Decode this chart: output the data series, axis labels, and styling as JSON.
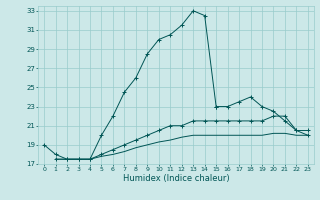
{
  "title": "",
  "xlabel": "Humidex (Indice chaleur)",
  "bg_color": "#cce8e8",
  "grid_color": "#99cccc",
  "line_color": "#005555",
  "xlim": [
    -0.5,
    23.5
  ],
  "ylim": [
    17,
    33.5
  ],
  "yticks": [
    17,
    19,
    21,
    23,
    25,
    27,
    29,
    31,
    33
  ],
  "xticks": [
    0,
    1,
    2,
    3,
    4,
    5,
    6,
    7,
    8,
    9,
    10,
    11,
    12,
    13,
    14,
    15,
    16,
    17,
    18,
    19,
    20,
    21,
    22,
    23
  ],
  "series": [
    {
      "x": [
        0,
        1,
        2,
        3,
        4,
        5,
        6,
        7,
        8,
        9,
        10,
        11,
        12,
        13,
        14,
        15
      ],
      "y": [
        19.0,
        18.0,
        17.5,
        17.5,
        17.5,
        20.0,
        22.0,
        24.5,
        26.0,
        28.5,
        30.0,
        30.5,
        31.5,
        33.0,
        32.5,
        23.0
      ],
      "marker": "+"
    },
    {
      "x": [
        15,
        16,
        17,
        18,
        19,
        20,
        21,
        22,
        23
      ],
      "y": [
        23.0,
        23.0,
        23.5,
        24.0,
        23.0,
        22.5,
        21.5,
        20.5,
        20.0
      ],
      "marker": "+"
    },
    {
      "x": [
        1,
        2,
        3,
        4,
        5,
        6,
        7,
        8,
        9,
        10,
        11,
        12,
        13,
        14,
        15,
        16,
        17,
        18,
        19,
        20,
        21,
        22,
        23
      ],
      "y": [
        17.5,
        17.5,
        17.5,
        17.5,
        18.0,
        18.5,
        19.0,
        19.5,
        20.0,
        20.5,
        21.0,
        21.0,
        21.5,
        21.5,
        21.5,
        21.5,
        21.5,
        21.5,
        21.5,
        22.0,
        22.0,
        20.5,
        20.5
      ],
      "marker": "+"
    },
    {
      "x": [
        1,
        2,
        3,
        4,
        5,
        6,
        7,
        8,
        9,
        10,
        11,
        12,
        13,
        14,
        15,
        16,
        17,
        18,
        19,
        20,
        21,
        22,
        23
      ],
      "y": [
        17.5,
        17.5,
        17.5,
        17.5,
        17.8,
        18.0,
        18.3,
        18.7,
        19.0,
        19.3,
        19.5,
        19.8,
        20.0,
        20.0,
        20.0,
        20.0,
        20.0,
        20.0,
        20.0,
        20.2,
        20.2,
        20.0,
        20.0
      ],
      "marker": null
    }
  ]
}
